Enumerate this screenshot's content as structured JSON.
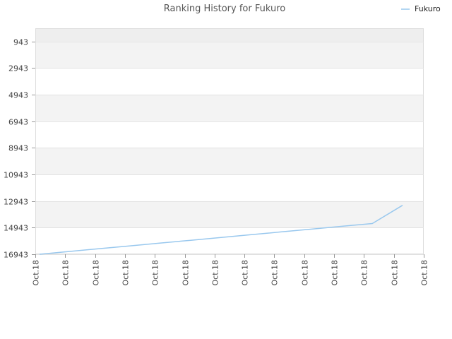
{
  "chart_data": {
    "type": "line",
    "title": "Ranking History for Fukuro",
    "xlabel": "",
    "ylabel": "",
    "x_tick_labels": [
      "Oct.18",
      "Oct.18",
      "Oct.18",
      "Oct.18",
      "Oct.18",
      "Oct.18",
      "Oct.18",
      "Oct.18",
      "Oct.18",
      "Oct.18",
      "Oct.18",
      "Oct.18",
      "Oct.18",
      "Oct.18"
    ],
    "y_ticks": [
      943,
      2943,
      4943,
      6943,
      8943,
      10943,
      12943,
      14943,
      16943
    ],
    "ylim": [
      16943,
      -57
    ],
    "y_inverted": true,
    "grid": true,
    "legend_position": "top-right",
    "series": [
      {
        "name": "Fukuro",
        "color": "#99c8ee",
        "values": [
          16943,
          16730,
          16520,
          16310,
          16100,
          15890,
          15680,
          15470,
          15260,
          15050,
          14840,
          14630,
          13260
        ]
      }
    ]
  },
  "colors": {
    "band_alt": "#f3f3f3",
    "band_top": "#eeeeee",
    "grid": "#e2e2e2",
    "axis": "#dddddd"
  }
}
